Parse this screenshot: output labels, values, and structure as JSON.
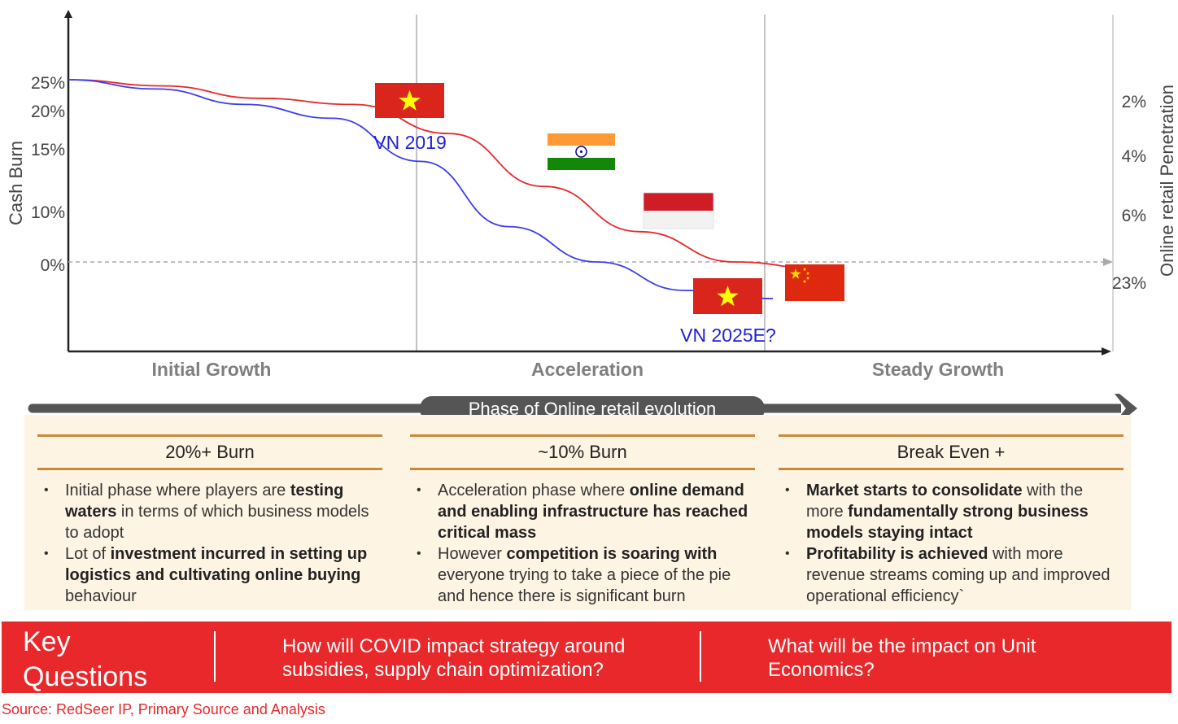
{
  "chart_data": {
    "type": "line",
    "y_left_label": "Cash Burn",
    "y_left_ticks": [
      "25%",
      "20%",
      "15%",
      "10%",
      "0%"
    ],
    "y_right_label": "Online retail Penetration",
    "y_right_ticks": [
      "2%",
      "4%",
      "6%",
      "23%"
    ],
    "phases": [
      "Initial Growth",
      "Acceleration",
      "Steady Growth"
    ],
    "series": [
      {
        "color": "#e8282a",
        "values": [
          25,
          24,
          22,
          21,
          17,
          12,
          6,
          0,
          -1
        ]
      },
      {
        "color": "#3c3cf0",
        "values": [
          25,
          23.5,
          21,
          19,
          14,
          7,
          0,
          -3.5,
          -4.5
        ]
      }
    ],
    "annotations": [
      "VN 2019",
      "VN 2025E?"
    ],
    "markers": [
      {
        "country": "Vietnam",
        "icon": "vietnam-flag-icon"
      },
      {
        "country": "India",
        "icon": "india-flag-icon"
      },
      {
        "country": "Indonesia",
        "icon": "indonesia-flag-icon"
      },
      {
        "country": "Vietnam",
        "icon": "vietnam-flag-icon"
      },
      {
        "country": "China",
        "icon": "china-flag-icon"
      }
    ]
  },
  "phase_bar": {
    "label": "Phase of Online retail evolution"
  },
  "columns": [
    {
      "heading": "20%+ Burn",
      "bullets": [
        [
          "Initial phase where players are ",
          "testing waters",
          " in terms of which business models to adopt"
        ],
        [
          "Lot of ",
          "investment incurred in setting up logistics and cultivating online buying",
          " behaviour"
        ]
      ]
    },
    {
      "heading": "~10% Burn",
      "bullets": [
        [
          "Acceleration phase where ",
          "online demand and enabling infrastructure has reached critical mass",
          ""
        ],
        [
          "However ",
          "competition is soaring with",
          " everyone trying to take a piece of the pie and hence there is significant burn"
        ]
      ]
    },
    {
      "heading": "Break Even +",
      "bullets": [
        [
          "",
          "Market starts to consolidate",
          " with the more "
        ],
        [
          "",
          "Profitability is achieved",
          " with more revenue streams coming up and improved operational efficiency`"
        ]
      ],
      "bullet1_bold2": "fundamentally strong business models staying intact"
    }
  ],
  "key": {
    "title": "Key Questions",
    "q1": "How will COVID impact strategy around subsidies, supply chain optimization?",
    "q2": "What will be the impact on Unit Economics?"
  },
  "source": "Source: RedSeer IP, Primary Source and Analysis",
  "colors": {
    "accent": "#e8282a",
    "panel": "#fdf4e4",
    "rule": "#c8893b",
    "blue": "#1f1fd6"
  }
}
